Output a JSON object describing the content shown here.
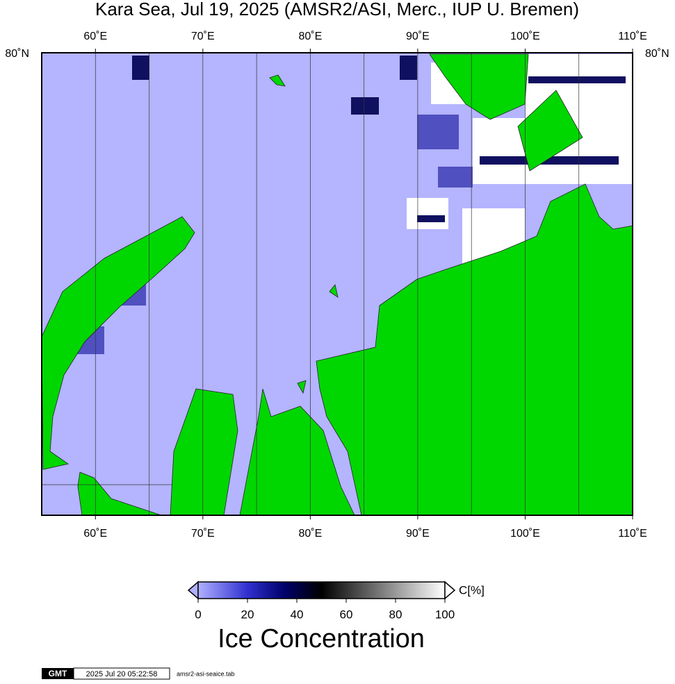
{
  "map": {
    "title": "Kara Sea, Jul 19, 2025 (AMSR2/ASI, Merc., IUP U. Bremen)",
    "xlim": [
      55,
      110
    ],
    "lon_ticks": [
      {
        "value": 60,
        "label": "60˚E"
      },
      {
        "value": 70,
        "label": "70˚E"
      },
      {
        "value": 80,
        "label": "80˚E"
      },
      {
        "value": 90,
        "label": "90˚E"
      },
      {
        "value": 100,
        "label": "100˚E"
      },
      {
        "value": 110,
        "label": "110˚E"
      }
    ],
    "lat_label": "80˚N"
  },
  "colorbar": {
    "range": [
      0,
      100
    ],
    "ticks": [
      0,
      20,
      40,
      60,
      80,
      100
    ],
    "unit": "C[%]",
    "label": "Ice Concentration"
  },
  "footer": {
    "logo": "GMT",
    "timestamp": "2025 Jul 20 05:22:58",
    "file": "amsr2-asi-seaice.tab"
  }
}
